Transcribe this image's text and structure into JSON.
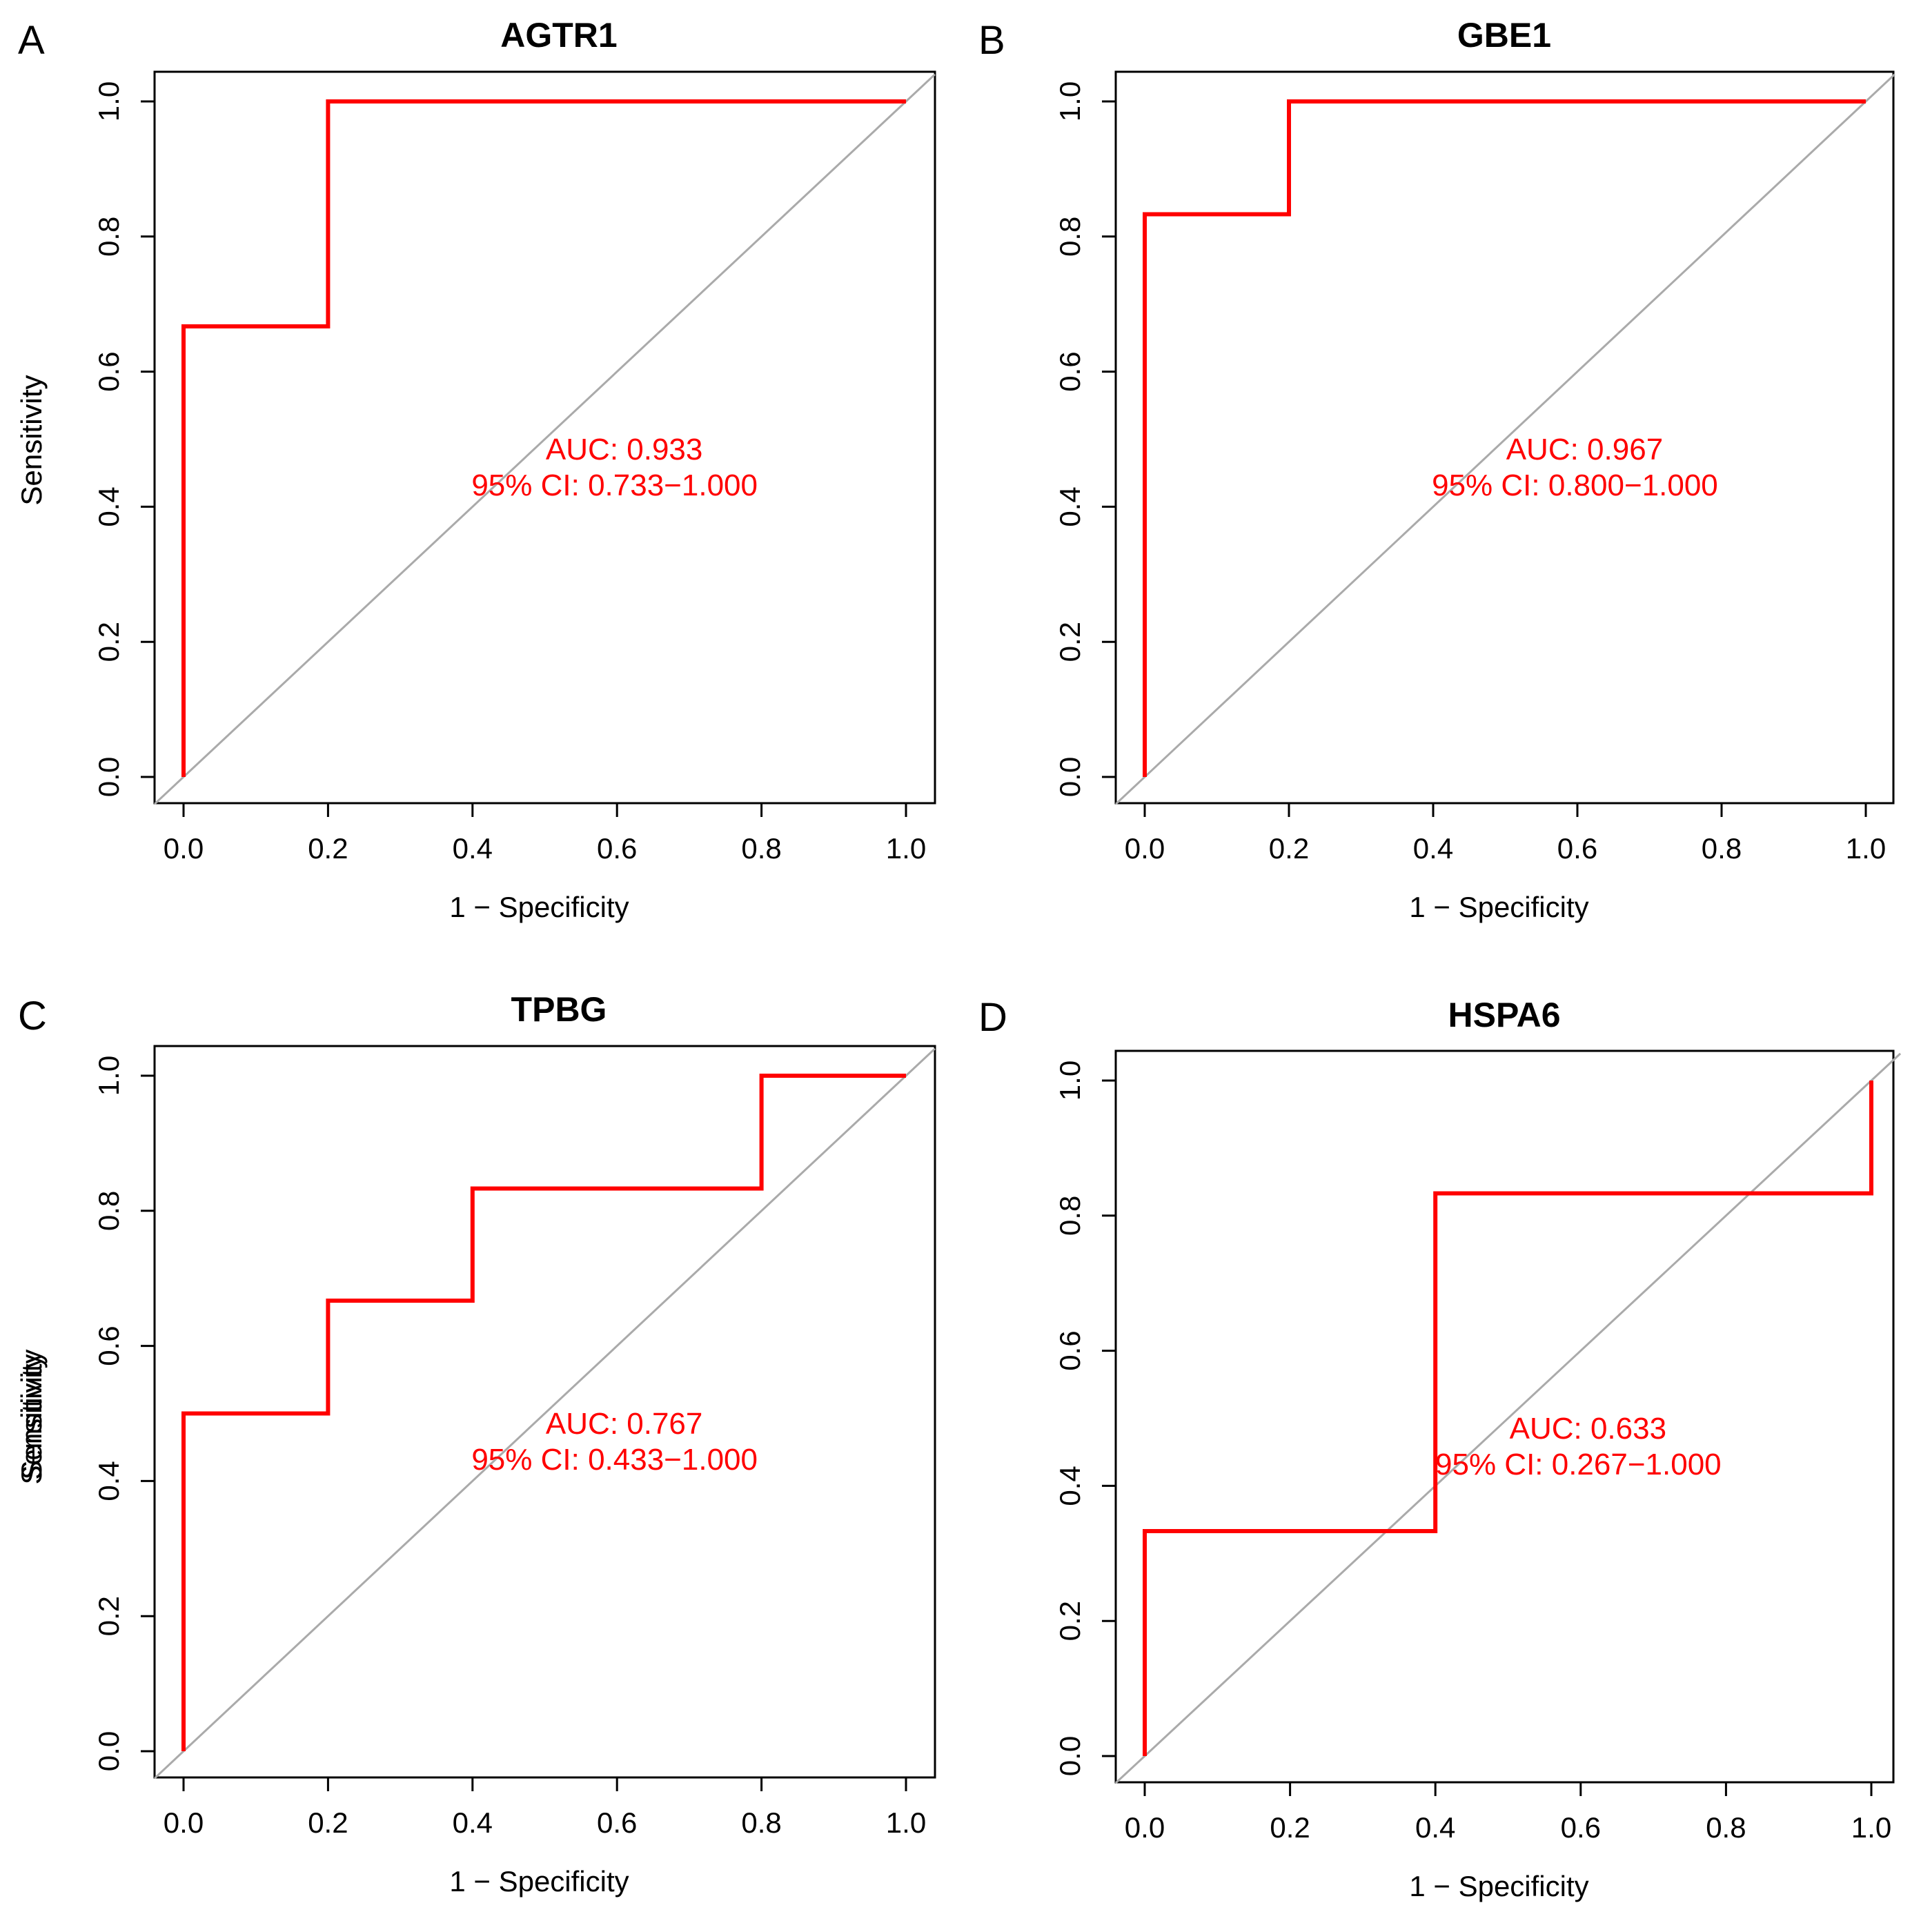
{
  "chart_data": [
    {
      "type": "line",
      "panel": "A",
      "title": "AGTR1",
      "xlabel": "1 − Specificity",
      "ylabel": "Sensitivity",
      "xlim": [
        0.0,
        1.0
      ],
      "ylim": [
        0.0,
        1.0
      ],
      "xticks": [
        "0.0",
        "0.2",
        "0.4",
        "0.6",
        "0.8",
        "1.0"
      ],
      "yticks": [
        "0.0",
        "0.2",
        "0.4",
        "0.6",
        "0.8",
        "1.0"
      ],
      "series": [
        {
          "name": "ROC",
          "color": "#ff0000",
          "x": [
            0.0,
            0.0,
            0.2,
            0.2,
            1.0
          ],
          "y": [
            0.0,
            0.667,
            0.667,
            1.0,
            1.0
          ]
        }
      ],
      "reference_line": {
        "color": "#aaaaaa",
        "x": [
          0.0,
          1.0
        ],
        "y": [
          0.0,
          1.0
        ]
      },
      "annotation": {
        "auc": "AUC: 0.933",
        "ci": "95% CI: 0.733−1.000"
      }
    },
    {
      "type": "line",
      "panel": "B",
      "title": "GBE1",
      "xlabel": "1 − Specificity",
      "ylabel": "Sensitivity",
      "xlim": [
        0.0,
        1.0
      ],
      "ylim": [
        0.0,
        1.0
      ],
      "xticks": [
        "0.0",
        "0.2",
        "0.4",
        "0.6",
        "0.8",
        "1.0"
      ],
      "yticks": [
        "0.0",
        "0.2",
        "0.4",
        "0.6",
        "0.8",
        "1.0"
      ],
      "series": [
        {
          "name": "ROC",
          "color": "#ff0000",
          "x": [
            0.0,
            0.0,
            0.2,
            0.2,
            1.0
          ],
          "y": [
            0.0,
            0.833,
            0.833,
            1.0,
            1.0
          ]
        }
      ],
      "reference_line": {
        "color": "#aaaaaa",
        "x": [
          0.0,
          1.0
        ],
        "y": [
          0.0,
          1.0
        ]
      },
      "annotation": {
        "auc": "AUC: 0.967",
        "ci": "95% CI: 0.800−1.000"
      }
    },
    {
      "type": "line",
      "panel": "C",
      "title": "TPBG",
      "xlabel": "1 − Specificity",
      "ylabel": "Sensitivity",
      "xlim": [
        0.0,
        1.0
      ],
      "ylim": [
        0.0,
        1.0
      ],
      "xticks": [
        "0.0",
        "0.2",
        "0.4",
        "0.6",
        "0.8",
        "1.0"
      ],
      "yticks": [
        "0.0",
        "0.2",
        "0.4",
        "0.6",
        "0.8",
        "1.0"
      ],
      "series": [
        {
          "name": "ROC",
          "color": "#ff0000",
          "x": [
            0.0,
            0.0,
            0.2,
            0.2,
            0.4,
            0.4,
            0.8,
            0.8,
            1.0
          ],
          "y": [
            0.0,
            0.5,
            0.5,
            0.667,
            0.667,
            0.833,
            0.833,
            1.0,
            1.0
          ]
        }
      ],
      "reference_line": {
        "color": "#aaaaaa",
        "x": [
          0.0,
          1.0
        ],
        "y": [
          0.0,
          1.0
        ]
      },
      "annotation": {
        "auc": "AUC: 0.767",
        "ci": "95% CI: 0.433−1.000"
      }
    },
    {
      "type": "line",
      "panel": "D",
      "title": "HSPA6",
      "xlabel": "1 − Specificity",
      "ylabel": "Sensitivity",
      "xlim": [
        0.0,
        1.0
      ],
      "ylim": [
        0.0,
        1.0
      ],
      "xticks": [
        "0.0",
        "0.2",
        "0.4",
        "0.6",
        "0.8",
        "1.0"
      ],
      "yticks": [
        "0.0",
        "0.2",
        "0.4",
        "0.6",
        "0.8",
        "1.0"
      ],
      "series": [
        {
          "name": "ROC",
          "color": "#ff0000",
          "x": [
            0.0,
            0.0,
            0.4,
            0.4,
            1.0,
            1.0
          ],
          "y": [
            0.0,
            0.333,
            0.333,
            0.833,
            0.833,
            1.0
          ]
        }
      ],
      "reference_line": {
        "color": "#aaaaaa",
        "x": [
          0.0,
          1.0
        ],
        "y": [
          0.0,
          1.0
        ]
      },
      "annotation": {
        "auc": "AUC: 0.633",
        "ci": "95% CI: 0.267−1.000"
      }
    }
  ]
}
